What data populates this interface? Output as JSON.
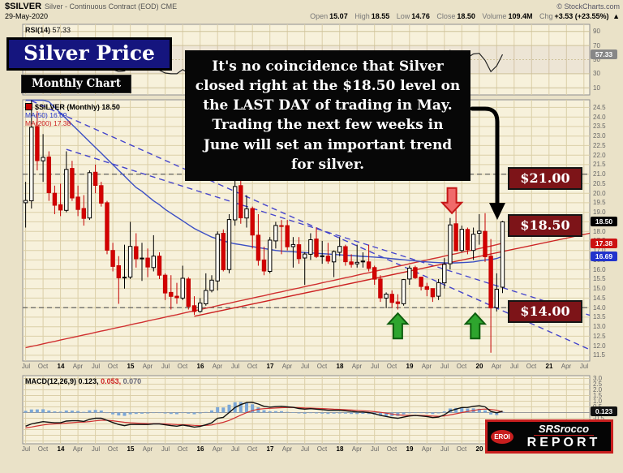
{
  "header": {
    "symbol": "$SILVER",
    "description": "Silver - Continuous Contract (EOD) CME",
    "source": "© StockCharts.com",
    "date": "29-May-2020",
    "quote": {
      "open_label": "Open",
      "open": "15.07",
      "high_label": "High",
      "high": "18.55",
      "low_label": "Low",
      "low": "14.76",
      "close_label": "Close",
      "close": "18.50",
      "volume_label": "Volume",
      "volume": "109.4M",
      "chg_label": "Chg",
      "chg": "+3.53 (+23.55%)",
      "chg_dir": "▲"
    }
  },
  "overlays": {
    "title_box": "Silver Price",
    "subtitle_box": "Monthly Chart",
    "annotation": "It's no coincidence that Silver closed right at the $18.50 level on the LAST DAY of trading in May.  Trading the next few weeks in June will set an important trend for silver.",
    "price_labels": [
      "$21.00",
      "$18.50",
      "$14.00"
    ],
    "logo": {
      "eroi": "EROI",
      "line1": "SRSrocco",
      "line2": "REPORT"
    }
  },
  "rsi": {
    "label": "RSI(14)",
    "value": "57.33"
  },
  "legend": {
    "series": "$SILVER (Monthly)",
    "series_value": "18.50",
    "ma50_label": "MA(50)",
    "ma50_value": "16.69",
    "ma200_label": "MA(200)",
    "ma200_value": "17.38"
  },
  "macd": {
    "label": "MACD(12,26,9)",
    "v1": "0.123,",
    "v2": "0.053,",
    "v3": "0.070"
  },
  "badges": {
    "close": "18.50",
    "ma200": "17.38",
    "ma50": "16.69",
    "rsi": "57.33",
    "macd": "0.123"
  },
  "chart_data": {
    "type": "candlestick",
    "title": "Silver Price - Monthly Chart ($SILVER)",
    "x_first_month": "Jul-2013",
    "x_last_month": "May-2020",
    "ylim_price": [
      11.2,
      24.9
    ],
    "ylim_rsi": [
      0,
      100
    ],
    "ylim_macd": [
      -2.75,
      3.25
    ],
    "y_ticks_price": [
      "24.5",
      "24.0",
      "23.5",
      "23.0",
      "22.5",
      "22.0",
      "21.5",
      "21.0",
      "20.5",
      "20.0",
      "19.5",
      "19.0",
      "18.5",
      "18.0",
      "17.5",
      "17.0",
      "16.5",
      "16.0",
      "15.5",
      "15.0",
      "14.5",
      "14.0",
      "13.5",
      "13.0",
      "12.5",
      "12.0",
      "11.5"
    ],
    "y_ticks_rsi": [
      "90",
      "70",
      "50",
      "30",
      "10"
    ],
    "y_ticks_macd": [
      "3.0",
      "2.5",
      "2.0",
      "1.5",
      "1.0",
      "0.5",
      "0.0",
      "-0.5",
      "-1.0",
      "-1.5",
      "-2.0",
      "-2.5"
    ],
    "x_ticks": [
      {
        "m": 0,
        "t": "Jul"
      },
      {
        "m": 3,
        "t": "Oct"
      },
      {
        "m": 6,
        "t": "14"
      },
      {
        "m": 9,
        "t": "Apr"
      },
      {
        "m": 12,
        "t": "Jul"
      },
      {
        "m": 15,
        "t": "Oct"
      },
      {
        "m": 18,
        "t": "15"
      },
      {
        "m": 21,
        "t": "Apr"
      },
      {
        "m": 24,
        "t": "Jul"
      },
      {
        "m": 27,
        "t": "Oct"
      },
      {
        "m": 30,
        "t": "16"
      },
      {
        "m": 33,
        "t": "Apr"
      },
      {
        "m": 36,
        "t": "Jul"
      },
      {
        "m": 39,
        "t": "Oct"
      },
      {
        "m": 42,
        "t": "17"
      },
      {
        "m": 45,
        "t": "Apr"
      },
      {
        "m": 48,
        "t": "Jul"
      },
      {
        "m": 51,
        "t": "Oct"
      },
      {
        "m": 54,
        "t": "18"
      },
      {
        "m": 57,
        "t": "Apr"
      },
      {
        "m": 60,
        "t": "Jul"
      },
      {
        "m": 63,
        "t": "Oct"
      },
      {
        "m": 66,
        "t": "19"
      },
      {
        "m": 69,
        "t": "Apr"
      },
      {
        "m": 72,
        "t": "Jul"
      },
      {
        "m": 75,
        "t": "Oct"
      },
      {
        "m": 78,
        "t": "20"
      },
      {
        "m": 81,
        "t": "Apr"
      },
      {
        "m": 84,
        "t": "Jul"
      },
      {
        "m": 87,
        "t": "Oct"
      },
      {
        "m": 90,
        "t": "21"
      },
      {
        "m": 93,
        "t": "Apr"
      },
      {
        "m": 96,
        "t": "Jul"
      }
    ],
    "ohlc": [
      [
        19.5,
        20.6,
        18.2,
        19.62
      ],
      [
        19.6,
        25.1,
        19.2,
        23.46
      ],
      [
        23.5,
        24.3,
        21.2,
        21.71
      ],
      [
        21.7,
        23.1,
        20.6,
        21.88
      ],
      [
        21.9,
        22.2,
        19.6,
        20.03
      ],
      [
        20.0,
        20.4,
        18.9,
        19.37
      ],
      [
        19.4,
        20.5,
        18.8,
        19.12
      ],
      [
        19.1,
        22.2,
        19.0,
        21.25
      ],
      [
        21.3,
        21.7,
        19.6,
        19.75
      ],
      [
        19.8,
        20.4,
        18.8,
        19.15
      ],
      [
        19.2,
        19.9,
        18.3,
        18.68
      ],
      [
        18.7,
        21.2,
        18.6,
        21.08
      ],
      [
        21.1,
        21.5,
        20.0,
        20.41
      ],
      [
        20.4,
        20.6,
        19.3,
        19.48
      ],
      [
        19.5,
        19.6,
        16.8,
        17.01
      ],
      [
        17.0,
        17.4,
        15.9,
        16.16
      ],
      [
        16.2,
        16.7,
        14.2,
        15.56
      ],
      [
        15.6,
        17.3,
        15.0,
        15.6
      ],
      [
        15.6,
        18.5,
        15.5,
        17.21
      ],
      [
        17.2,
        17.9,
        16.1,
        16.56
      ],
      [
        16.6,
        17.4,
        15.4,
        16.6
      ],
      [
        16.6,
        17.1,
        15.6,
        16.13
      ],
      [
        16.1,
        17.8,
        15.9,
        16.7
      ],
      [
        16.7,
        16.9,
        15.5,
        15.7
      ],
      [
        15.7,
        15.8,
        14.4,
        14.77
      ],
      [
        14.8,
        15.7,
        13.9,
        14.59
      ],
      [
        14.6,
        15.3,
        14.2,
        14.52
      ],
      [
        14.5,
        16.2,
        14.4,
        15.54
      ],
      [
        15.5,
        15.6,
        13.9,
        14.06
      ],
      [
        14.1,
        14.6,
        13.62,
        13.8
      ],
      [
        13.8,
        14.5,
        13.73,
        14.24
      ],
      [
        14.2,
        15.8,
        14.1,
        14.9
      ],
      [
        14.9,
        15.7,
        14.8,
        15.44
      ],
      [
        15.4,
        18.0,
        14.9,
        17.85
      ],
      [
        17.9,
        18.1,
        15.9,
        15.99
      ],
      [
        16.0,
        18.9,
        15.8,
        18.62
      ],
      [
        18.6,
        21.2,
        18.3,
        20.35
      ],
      [
        20.4,
        20.8,
        18.4,
        18.71
      ],
      [
        18.7,
        19.9,
        18.2,
        19.18
      ],
      [
        19.2,
        19.3,
        17.1,
        17.81
      ],
      [
        17.8,
        18.9,
        16.2,
        16.48
      ],
      [
        16.5,
        17.2,
        15.7,
        15.92
      ],
      [
        15.9,
        17.7,
        15.8,
        17.54
      ],
      [
        17.5,
        18.5,
        17.1,
        18.31
      ],
      [
        18.3,
        18.6,
        16.8,
        18.26
      ],
      [
        18.3,
        18.6,
        17.0,
        17.19
      ],
      [
        17.2,
        17.7,
        16.1,
        17.31
      ],
      [
        17.3,
        17.7,
        16.3,
        16.57
      ],
      [
        16.6,
        16.9,
        15.2,
        16.81
      ],
      [
        16.8,
        17.9,
        16.5,
        17.56
      ],
      [
        17.6,
        18.2,
        16.6,
        16.68
      ],
      [
        16.7,
        17.5,
        16.3,
        16.72
      ],
      [
        16.7,
        17.4,
        16.3,
        16.44
      ],
      [
        16.4,
        17.0,
        15.6,
        16.94
      ],
      [
        16.9,
        17.7,
        16.7,
        17.21
      ],
      [
        17.2,
        17.3,
        16.2,
        16.41
      ],
      [
        16.4,
        16.8,
        16.1,
        16.27
      ],
      [
        16.3,
        17.3,
        16.1,
        16.38
      ],
      [
        16.4,
        16.9,
        16.1,
        16.44
      ],
      [
        16.4,
        17.3,
        15.9,
        16.06
      ],
      [
        16.1,
        16.2,
        15.2,
        15.49
      ],
      [
        15.5,
        15.7,
        14.3,
        14.51
      ],
      [
        14.5,
        14.8,
        13.97,
        14.71
      ],
      [
        14.7,
        14.9,
        14.0,
        14.27
      ],
      [
        14.3,
        14.7,
        13.9,
        14.21
      ],
      [
        14.2,
        15.5,
        14.1,
        15.47
      ],
      [
        15.5,
        16.2,
        15.2,
        16.07
      ],
      [
        16.1,
        16.2,
        15.5,
        15.57
      ],
      [
        15.6,
        15.6,
        14.9,
        15.11
      ],
      [
        15.1,
        15.3,
        14.6,
        14.96
      ],
      [
        15.0,
        15.0,
        14.3,
        14.57
      ],
      [
        14.6,
        15.5,
        14.4,
        15.31
      ],
      [
        15.3,
        16.6,
        15.0,
        16.27
      ],
      [
        16.3,
        18.7,
        16.0,
        18.34
      ],
      [
        18.4,
        19.75,
        17.5,
        16.98
      ],
      [
        17.0,
        18.3,
        16.9,
        18.11
      ],
      [
        18.1,
        18.2,
        16.8,
        17.04
      ],
      [
        17.0,
        18.2,
        16.5,
        17.85
      ],
      [
        17.9,
        18.9,
        17.3,
        18.01
      ],
      [
        18.0,
        18.95,
        16.4,
        16.67
      ],
      [
        16.7,
        17.6,
        11.64,
        13.98
      ],
      [
        14.0,
        15.8,
        13.8,
        14.96
      ],
      [
        15.07,
        18.55,
        14.76,
        18.5
      ]
    ],
    "ma50": [
      26.0,
      25.7,
      25.4,
      25.1,
      24.8,
      24.5,
      24.2,
      23.9,
      23.6,
      23.3,
      23.0,
      22.7,
      22.4,
      22.1,
      21.8,
      21.5,
      21.2,
      20.9,
      20.6,
      20.3,
      20.1,
      19.85,
      19.6,
      19.4,
      19.15,
      18.95,
      18.75,
      18.55,
      18.35,
      18.15,
      18.0,
      17.85,
      17.7,
      17.6,
      17.5,
      17.42,
      17.35,
      17.3,
      17.25,
      17.2,
      17.15,
      17.1,
      17.05,
      17.0,
      16.97,
      16.95,
      16.93,
      16.91,
      16.89,
      16.87,
      16.85,
      16.83,
      16.81,
      16.79,
      16.77,
      16.75,
      16.73,
      16.71,
      16.69,
      16.67,
      16.65,
      16.63,
      16.6,
      16.57,
      16.54,
      16.51,
      16.48,
      16.45,
      16.42,
      16.4,
      16.38,
      16.36,
      16.35,
      16.34,
      16.35,
      16.36,
      16.38,
      16.4,
      16.45,
      16.5,
      16.52,
      16.58,
      16.69
    ],
    "ma200": [
      11.9,
      11.97,
      12.03,
      12.1,
      12.17,
      12.23,
      12.3,
      12.37,
      12.43,
      12.5,
      12.57,
      12.63,
      12.7,
      12.77,
      12.83,
      12.9,
      12.97,
      13.03,
      13.1,
      13.17,
      13.23,
      13.3,
      13.37,
      13.43,
      13.5,
      13.57,
      13.63,
      13.7,
      13.77,
      13.83,
      13.9,
      13.97,
      14.03,
      14.1,
      14.17,
      14.23,
      14.3,
      14.37,
      14.43,
      14.5,
      14.57,
      14.63,
      14.7,
      14.77,
      14.83,
      14.9,
      14.97,
      15.03,
      15.1,
      15.17,
      15.23,
      15.3,
      15.37,
      15.43,
      15.5,
      15.57,
      15.63,
      15.7,
      15.77,
      15.83,
      15.9,
      15.97,
      16.03,
      16.1,
      16.17,
      16.23,
      16.3,
      16.37,
      16.43,
      16.5,
      16.57,
      16.63,
      16.7,
      16.77,
      16.83,
      16.9,
      16.97,
      17.03,
      17.1,
      17.17,
      17.23,
      17.3,
      17.38
    ],
    "rsi14": [
      46,
      54,
      50,
      51,
      47,
      45,
      44,
      50,
      47,
      46,
      44,
      50,
      48,
      45,
      39,
      36,
      33,
      34,
      41,
      38,
      39,
      37,
      40,
      35,
      31,
      30,
      30,
      36,
      31,
      29,
      32,
      35,
      38,
      50,
      43,
      54,
      61,
      56,
      59,
      53,
      46,
      42,
      49,
      54,
      53,
      48,
      49,
      45,
      47,
      51,
      46,
      46,
      44,
      48,
      50,
      45,
      44,
      45,
      45,
      43,
      39,
      33,
      35,
      32,
      32,
      41,
      45,
      42,
      40,
      39,
      36,
      42,
      49,
      63,
      53,
      60,
      53,
      58,
      59,
      49,
      33,
      41,
      57.33
    ],
    "macd_line": [
      -1.2,
      -1.0,
      -0.9,
      -0.8,
      -0.85,
      -0.9,
      -0.9,
      -0.75,
      -0.72,
      -0.72,
      -0.78,
      -0.6,
      -0.5,
      -0.5,
      -0.68,
      -0.88,
      -1.05,
      -1.15,
      -1.05,
      -1.05,
      -1.05,
      -1.05,
      -1.0,
      -1.0,
      -1.08,
      -1.15,
      -1.2,
      -1.1,
      -1.18,
      -1.28,
      -1.22,
      -1.08,
      -0.9,
      -0.5,
      -0.42,
      0.0,
      0.45,
      0.7,
      0.88,
      0.9,
      0.75,
      0.55,
      0.48,
      0.52,
      0.55,
      0.5,
      0.46,
      0.36,
      0.3,
      0.34,
      0.3,
      0.26,
      0.2,
      0.2,
      0.2,
      0.16,
      0.1,
      0.06,
      0.05,
      0.0,
      -0.1,
      -0.25,
      -0.34,
      -0.44,
      -0.5,
      -0.4,
      -0.3,
      -0.26,
      -0.3,
      -0.35,
      -0.44,
      -0.4,
      -0.2,
      0.15,
      0.3,
      0.44,
      0.45,
      0.55,
      0.6,
      0.5,
      0.1,
      -0.02,
      0.123
    ],
    "macd_signal": [
      -1.35,
      -1.27,
      -1.18,
      -1.09,
      -1.03,
      -1.0,
      -0.98,
      -0.93,
      -0.89,
      -0.85,
      -0.84,
      -0.79,
      -0.73,
      -0.68,
      -0.68,
      -0.72,
      -0.79,
      -0.86,
      -0.9,
      -0.93,
      -0.95,
      -0.97,
      -0.98,
      -0.98,
      -1.0,
      -1.03,
      -1.06,
      -1.07,
      -1.09,
      -1.13,
      -1.15,
      -1.13,
      -1.09,
      -0.97,
      -0.86,
      -0.69,
      -0.46,
      -0.23,
      -0.01,
      0.17,
      0.29,
      0.34,
      0.37,
      0.4,
      0.43,
      0.44,
      0.45,
      0.43,
      0.4,
      0.39,
      0.37,
      0.35,
      0.32,
      0.29,
      0.28,
      0.25,
      0.22,
      0.19,
      0.16,
      0.13,
      0.08,
      0.02,
      -0.05,
      -0.13,
      -0.2,
      -0.24,
      -0.25,
      -0.25,
      -0.26,
      -0.28,
      -0.31,
      -0.33,
      -0.3,
      -0.21,
      -0.11,
      0.0,
      0.09,
      0.18,
      0.27,
      0.31,
      0.27,
      0.21,
      0.053
    ],
    "trendlines": [
      {
        "color": "#4444CC",
        "dash": true,
        "from": [
          1,
          24.85
        ],
        "to": [
          97,
          11.8
        ]
      },
      {
        "color": "#4444CC",
        "dash": true,
        "from": [
          7,
          22.3
        ],
        "to": [
          97,
          13.6
        ]
      },
      {
        "color": "#CC2222",
        "dash": false,
        "from": [
          29,
          13.55
        ],
        "to": [
          97,
          17.9
        ]
      }
    ],
    "hlines": [
      {
        "y": 21.0
      },
      {
        "y": 14.0
      }
    ],
    "price_levels": [
      21.0,
      18.5,
      14.0
    ],
    "arrows": {
      "red_down": {
        "month": 73.3,
        "tip_price": 18.95
      },
      "green_up": [
        {
          "month": 64,
          "tip_price": 13.7
        },
        {
          "month": 77.3,
          "tip_price": 13.7
        }
      ]
    }
  }
}
